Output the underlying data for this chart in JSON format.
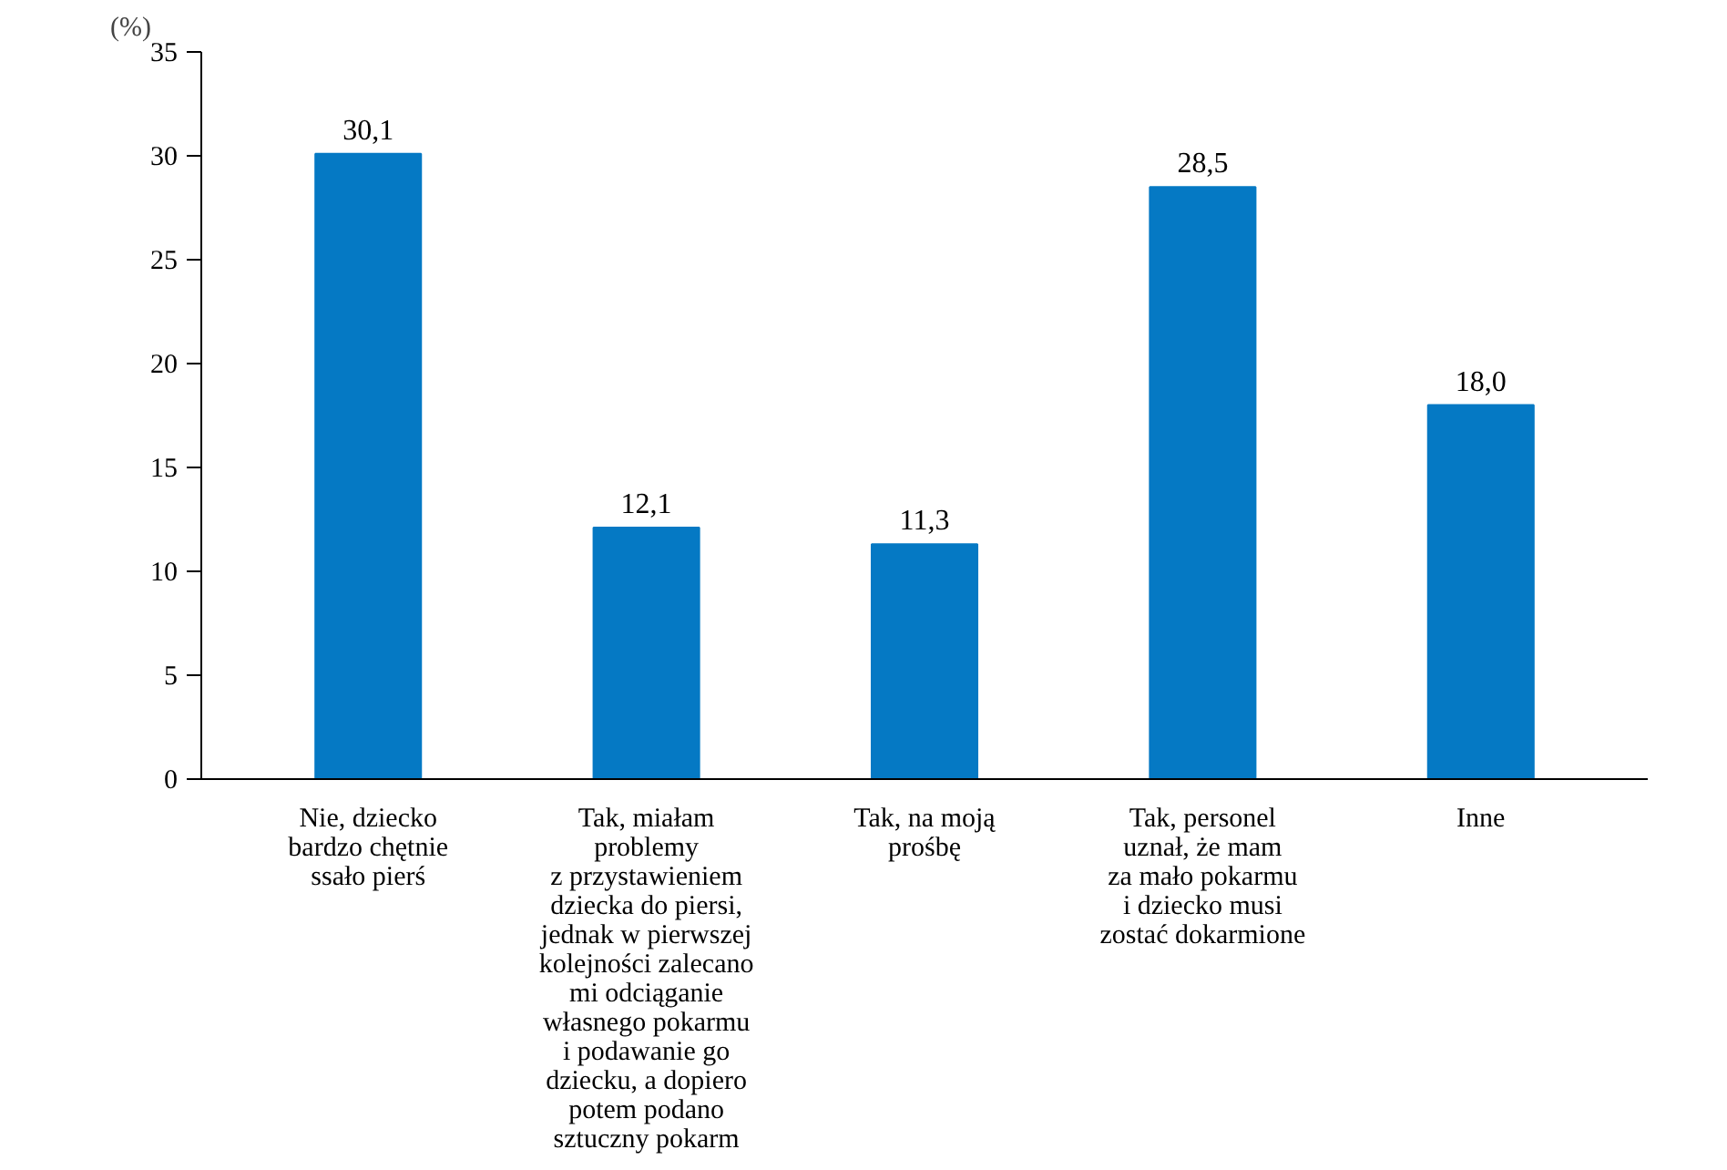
{
  "chart_data": {
    "type": "bar",
    "ylabel": "(%)",
    "categories": [
      "Nie, dziecko\nbardzo chętnie\nssało pierś",
      "Tak, miałam\nproblemy\nz przystawieniem\ndziecka do piersi,\njednak w pierwszej\nkolejności zalecano\nmi odciąganie\nwłasnego pokarmu\ni podawanie go\ndziecku, a dopiero\npotem podano\nsztuczny pokarm",
      "Tak, na moją\nprośbę",
      "Tak, personel\nuznał, że mam\nza mało pokarmu\ni dziecko musi\nzostać dokarmione",
      "Inne"
    ],
    "values": [
      30.1,
      12.1,
      11.3,
      28.5,
      18.0
    ],
    "value_labels": [
      "30,1",
      "12,1",
      "11,3",
      "28,5",
      "18,0"
    ],
    "color": "#0579c4",
    "ylim": [
      0,
      35
    ],
    "yticks": [
      0,
      5,
      10,
      15,
      20,
      25,
      30,
      35
    ],
    "grid": false
  }
}
